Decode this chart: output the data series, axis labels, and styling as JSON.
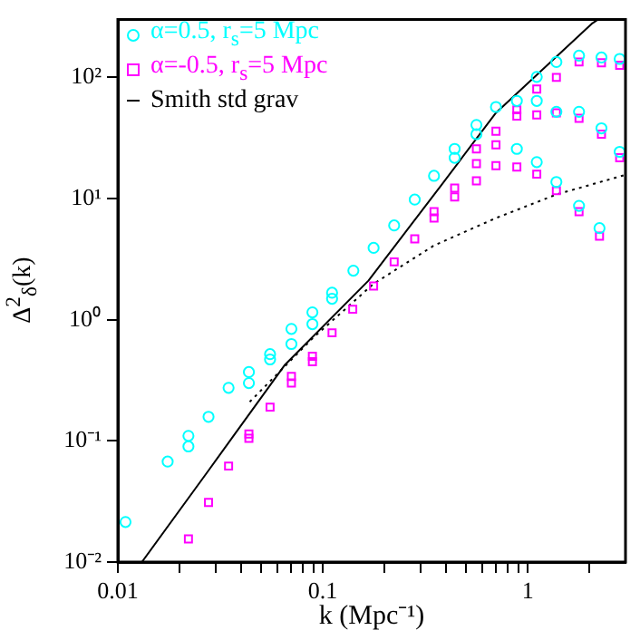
{
  "chart_data": {
    "type": "scatter",
    "xlabel": "k (Mpc⁻¹)",
    "ylabel": "Δ$^{2}$$_{δ}$(k)",
    "log": "xy",
    "grid": false,
    "legend": "top left",
    "xlim": [
      0.01,
      3
    ],
    "ylim": [
      0.01,
      300
    ],
    "xticks": [
      0.01,
      {
        "value": 0.02,
        "label": null
      },
      {
        "value": 0.03,
        "label": null
      },
      {
        "value": 0.04,
        "label": null
      },
      {
        "value": 0.05,
        "label": null
      },
      {
        "value": 0.06,
        "label": null
      },
      {
        "value": 0.07,
        "label": null
      },
      {
        "value": 0.08,
        "label": null
      },
      {
        "value": 0.09,
        "label": null
      },
      0.1,
      {
        "value": 0.2,
        "label": null
      },
      {
        "value": 0.3,
        "label": null
      },
      {
        "value": 0.4,
        "label": null
      },
      {
        "value": 0.5,
        "label": null
      },
      {
        "value": 0.6,
        "label": null
      },
      {
        "value": 0.7,
        "label": null
      },
      {
        "value": 0.8,
        "label": null
      },
      {
        "value": 0.9,
        "label": null
      },
      1,
      {
        "value": 2,
        "label": null
      }
    ],
    "yticks": [
      {
        "value": 0.01,
        "label": "10⁻²"
      },
      {
        "value": 0.1,
        "label": "10⁻¹"
      },
      {
        "value": 1,
        "label": "10⁰"
      },
      {
        "value": 10,
        "label": "10¹"
      },
      {
        "value": 100,
        "label": "10²"
      }
    ],
    "series": [
      {
        "name": "α=0.5, r$_{s}$=5 Mpc",
        "type": "scatter",
        "marker": "circle",
        "color": "#00ffff",
        "x": [
          0.0109,
          0.0175,
          0.0221,
          0.0221,
          0.0277,
          0.0347,
          0.0436,
          0.0436,
          0.0553,
          0.0553,
          0.0703,
          0.0703,
          0.089,
          0.089,
          0.111,
          0.111,
          0.141,
          0.177,
          0.223,
          0.281,
          0.349,
          0.44,
          0.44,
          0.562,
          0.562,
          0.7,
          0.885,
          0.885,
          1.107,
          1.107,
          1.107,
          1.38,
          1.38,
          1.38,
          1.78,
          1.78,
          1.78,
          2.29,
          2.29,
          2.24,
          2.81,
          2.81
        ],
        "values": [
          0.0214,
          0.0675,
          0.11,
          0.09,
          0.158,
          0.274,
          0.37,
          0.3,
          0.52,
          0.47,
          0.84,
          0.63,
          1.15,
          0.92,
          1.67,
          1.49,
          2.54,
          3.92,
          6.0,
          9.8,
          15.4,
          25.7,
          21.7,
          40.5,
          34,
          57,
          64,
          25.7,
          101,
          64,
          20,
          134,
          52,
          13.7,
          151,
          52,
          8.7,
          146,
          38,
          5.7,
          142,
          24.3
        ]
      },
      {
        "name": "α=-0.5, r$_{s}$=5 Mpc",
        "type": "scatter",
        "marker": "square",
        "color": "#ff00ff",
        "x": [
          0.0221,
          0.0277,
          0.0347,
          0.0436,
          0.0436,
          0.0553,
          0.0703,
          0.0703,
          0.089,
          0.089,
          0.111,
          0.14,
          0.177,
          0.223,
          0.281,
          0.349,
          0.349,
          0.44,
          0.44,
          0.562,
          0.562,
          0.562,
          0.7,
          0.7,
          0.7,
          0.885,
          0.885,
          0.885,
          1.107,
          1.107,
          1.107,
          1.38,
          1.38,
          1.38,
          1.78,
          1.78,
          1.78,
          2.29,
          2.29,
          2.24,
          2.81,
          2.81
        ],
        "values": [
          0.0155,
          0.031,
          0.062,
          0.114,
          0.105,
          0.19,
          0.34,
          0.3,
          0.5,
          0.45,
          0.78,
          1.22,
          1.9,
          3.0,
          4.65,
          7.8,
          6.9,
          12.2,
          10.3,
          25.7,
          19.4,
          14,
          36,
          27.8,
          18.7,
          54,
          48,
          18.2,
          80,
          49,
          15.9,
          100,
          51,
          11.6,
          134,
          46,
          7.8,
          132,
          34,
          4.9,
          126,
          21.7
        ]
      },
      {
        "name": "Smith std grav",
        "type": "line",
        "marker": "none",
        "line_style": "solid",
        "color": "#000000",
        "x": [
          0.0131,
          0.0277,
          0.065,
          0.167,
          0.38,
          0.7,
          2.07,
          2.2
        ],
        "values": [
          0.01,
          0.057,
          0.42,
          2.1,
          13,
          51,
          280,
          300
        ]
      },
      {
        "type": "line",
        "marker": "none",
        "line_style": "dotted",
        "color": "#000000",
        "x": [
          0.044,
          0.089,
          0.177,
          0.349,
          0.7,
          1.38,
          3.0
        ],
        "values": [
          0.21,
          0.7,
          1.98,
          4.1,
          6.9,
          10.8,
          15.7
        ]
      }
    ]
  }
}
